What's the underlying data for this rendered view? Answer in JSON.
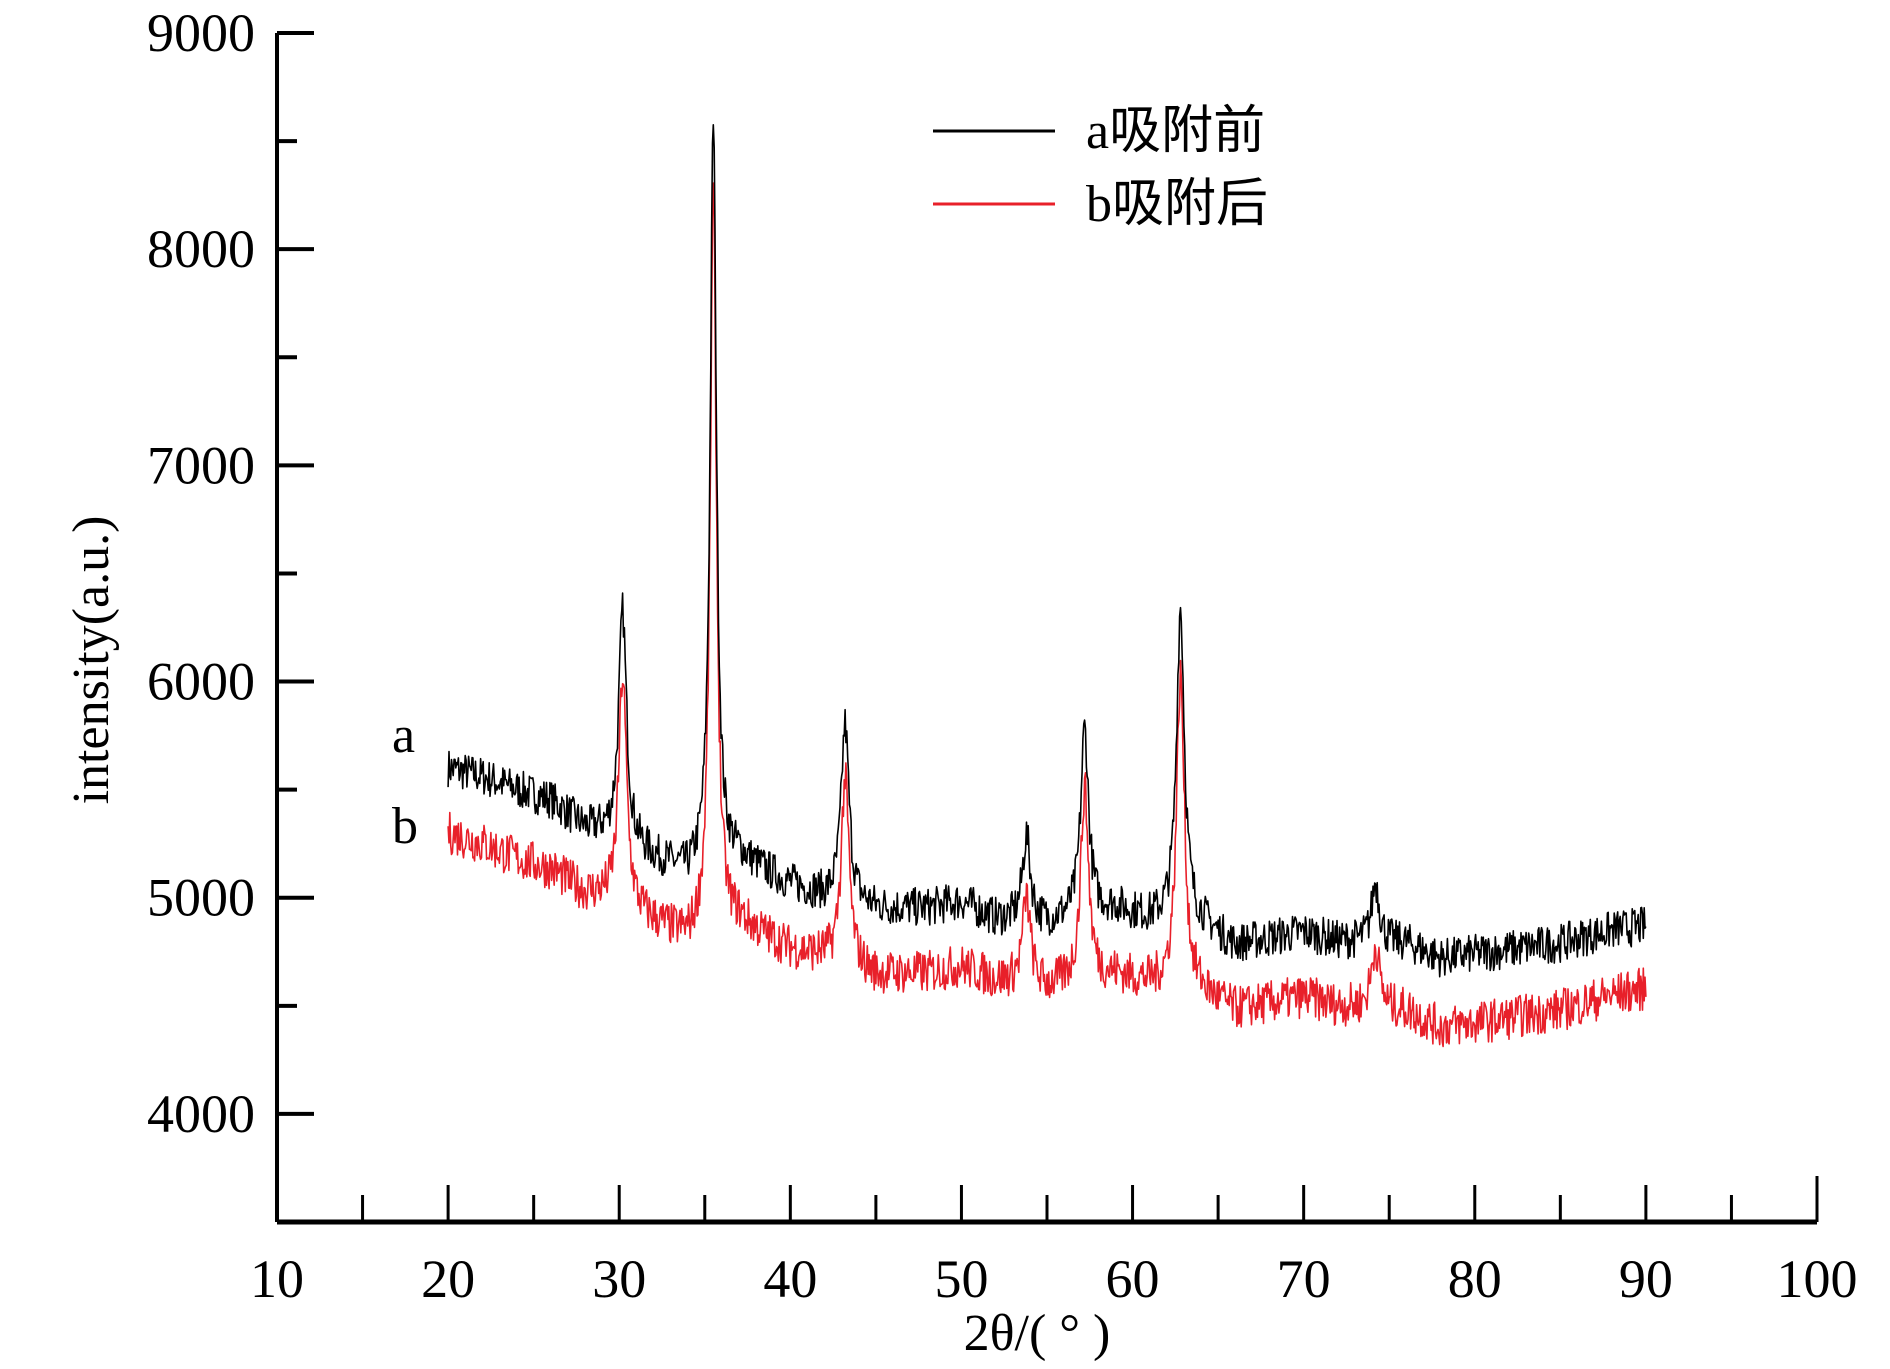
{
  "chart_data": {
    "type": "line",
    "xlabel": "2θ/( ° )",
    "ylabel": "intensity(a.u.)",
    "xlim": [
      10,
      100
    ],
    "ylim": [
      3500,
      9000
    ],
    "xticks": [
      10,
      20,
      30,
      40,
      50,
      60,
      70,
      80,
      90,
      100
    ],
    "yticks": [
      4000,
      5000,
      6000,
      7000,
      8000,
      9000
    ],
    "grid": false,
    "legend_position": "top-right",
    "series": [
      {
        "name": "a吸附前",
        "curve_label": "a",
        "color": "#000000",
        "baseline": [
          [
            20,
            5600
          ],
          [
            22,
            5560
          ],
          [
            24,
            5500
          ],
          [
            26,
            5450
          ],
          [
            28,
            5320
          ],
          [
            29,
            5300
          ],
          [
            32,
            5180
          ],
          [
            34,
            5100
          ],
          [
            37,
            5180
          ],
          [
            40,
            5060
          ],
          [
            42,
            5000
          ],
          [
            45,
            4950
          ],
          [
            48,
            4950
          ],
          [
            50,
            4980
          ],
          [
            52,
            4900
          ],
          [
            55,
            4880
          ],
          [
            59,
            4950
          ],
          [
            61,
            4900
          ],
          [
            64,
            4880
          ],
          [
            66,
            4780
          ],
          [
            70,
            4840
          ],
          [
            72,
            4800
          ],
          [
            76,
            4790
          ],
          [
            78,
            4720
          ],
          [
            80,
            4740
          ],
          [
            85,
            4790
          ],
          [
            88,
            4850
          ],
          [
            90,
            4870
          ]
        ],
        "peaks": [
          [
            30.2,
            6320
          ],
          [
            35.5,
            8600
          ],
          [
            43.2,
            5800
          ],
          [
            53.8,
            5280
          ],
          [
            57.2,
            5780
          ],
          [
            62.8,
            6340
          ],
          [
            74.2,
            5070
          ]
        ]
      },
      {
        "name": "b吸附后",
        "curve_label": "b",
        "color": "#e8202a",
        "baseline": [
          [
            20,
            5300
          ],
          [
            22,
            5250
          ],
          [
            24,
            5180
          ],
          [
            26,
            5130
          ],
          [
            28,
            5020
          ],
          [
            29,
            5000
          ],
          [
            32,
            4880
          ],
          [
            34,
            4800
          ],
          [
            37,
            4880
          ],
          [
            40,
            4760
          ],
          [
            42,
            4720
          ],
          [
            45,
            4640
          ],
          [
            48,
            4650
          ],
          [
            50,
            4680
          ],
          [
            52,
            4620
          ],
          [
            55,
            4580
          ],
          [
            59,
            4640
          ],
          [
            61,
            4600
          ],
          [
            64,
            4560
          ],
          [
            66,
            4480
          ],
          [
            70,
            4540
          ],
          [
            72,
            4500
          ],
          [
            76,
            4480
          ],
          [
            78,
            4400
          ],
          [
            80,
            4420
          ],
          [
            85,
            4480
          ],
          [
            88,
            4550
          ],
          [
            90,
            4580
          ]
        ],
        "peaks": [
          [
            30.2,
            6020
          ],
          [
            35.5,
            8250
          ],
          [
            43.2,
            5550
          ],
          [
            53.8,
            5000
          ],
          [
            57.2,
            5500
          ],
          [
            62.8,
            6020
          ],
          [
            74.2,
            4780
          ]
        ]
      }
    ]
  }
}
